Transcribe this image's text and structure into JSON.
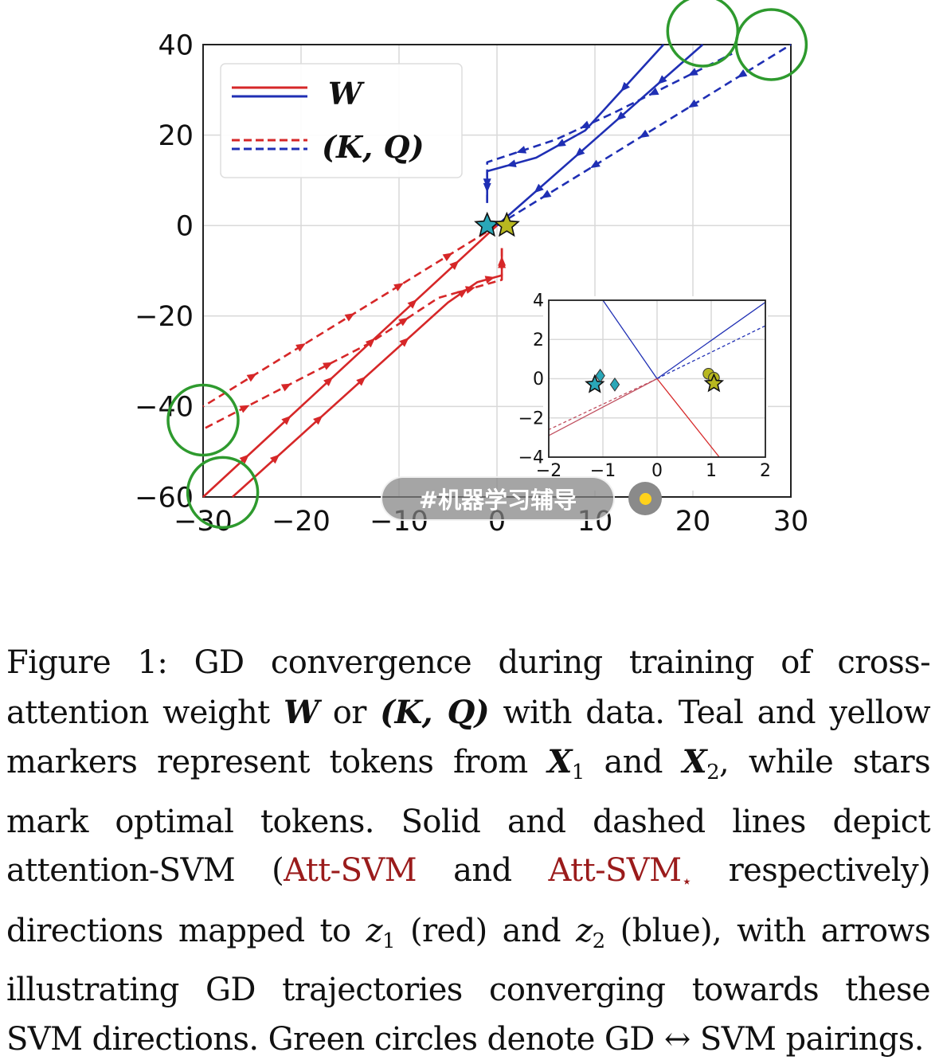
{
  "chart_data": [
    {
      "type": "line",
      "x_ticks": [
        "−30",
        "−20",
        "−10",
        "0",
        "10",
        "20",
        "30"
      ],
      "y_ticks": [
        "40",
        "20",
        "0",
        "−20",
        "−40",
        "−60"
      ],
      "xlim": [
        -30,
        30
      ],
      "ylim": [
        -60,
        40
      ],
      "grid": true,
      "legend_position": "top-left",
      "legend": [
        {
          "label": "W",
          "style": "solid",
          "colors": [
            "#d62728",
            "#1f2fb4"
          ]
        },
        {
          "label": "(K, Q)",
          "style": "dashed",
          "colors": [
            "#d62728",
            "#1f2fb4"
          ]
        }
      ],
      "series": [
        {
          "color": "#d62728",
          "style": "solid",
          "points": [
            [
              0,
              0
            ],
            [
              -30,
              -60
            ]
          ]
        },
        {
          "color": "#d62728",
          "style": "solid",
          "points": [
            [
              0.5,
              -5
            ],
            [
              0.5,
              -11
            ],
            [
              -2,
              -12.5
            ],
            [
              -5,
              -17
            ],
            [
              -27,
              -60
            ]
          ]
        },
        {
          "color": "#d62728",
          "style": "dashed",
          "points": [
            [
              0,
              0
            ],
            [
              -30,
              -40
            ]
          ]
        },
        {
          "color": "#d62728",
          "style": "dashed",
          "points": [
            [
              0.5,
              -5
            ],
            [
              0.5,
              -12
            ],
            [
              -6,
              -16
            ],
            [
              -13,
              -26
            ],
            [
              -30,
              -45
            ]
          ]
        },
        {
          "color": "#1f2fb4",
          "style": "solid",
          "points": [
            [
              0,
              0
            ],
            [
              21,
              40
            ]
          ]
        },
        {
          "color": "#1f2fb4",
          "style": "solid",
          "points": [
            [
              -1,
              5
            ],
            [
              -1,
              12
            ],
            [
              4,
              15
            ],
            [
              9,
              21
            ],
            [
              17,
              40
            ]
          ]
        },
        {
          "color": "#1f2fb4",
          "style": "dashed",
          "points": [
            [
              0,
              0
            ],
            [
              30,
              40
            ]
          ]
        },
        {
          "color": "#1f2fb4",
          "style": "dashed",
          "points": [
            [
              -1,
              5
            ],
            [
              -1,
              14
            ],
            [
              6,
              19
            ],
            [
              12,
              25
            ],
            [
              24,
              38
            ]
          ]
        }
      ],
      "markers": [
        {
          "kind": "star",
          "color": "#2aa7b8",
          "x": -1,
          "y": 0
        },
        {
          "kind": "star",
          "color": "#b8b820",
          "x": 1,
          "y": 0
        }
      ],
      "highlight_circles": [
        [
          21,
          43
        ],
        [
          28,
          40
        ],
        [
          -30,
          -43
        ],
        [
          -28,
          -59
        ]
      ]
    },
    {
      "type": "line",
      "x_ticks": [
        "−2",
        "−1",
        "0",
        "1",
        "2"
      ],
      "y_ticks": [
        "4",
        "2",
        "0",
        "−2",
        "−4"
      ],
      "xlim": [
        -2,
        2
      ],
      "ylim": [
        -4,
        4
      ],
      "series": [
        {
          "color": "#1f2fb4",
          "style": "solid",
          "points": [
            [
              0,
              0
            ],
            [
              2,
              3.9
            ]
          ]
        },
        {
          "color": "#1f2fb4",
          "style": "dashed",
          "points": [
            [
              0,
              0
            ],
            [
              2,
              2.7
            ]
          ]
        },
        {
          "color": "#c05060",
          "style": "solid",
          "points": [
            [
              0,
              0
            ],
            [
              -2,
              -2.9
            ]
          ]
        },
        {
          "color": "#c05060",
          "style": "dashed",
          "points": [
            [
              0,
              0
            ],
            [
              -2,
              -2.6
            ]
          ]
        },
        {
          "color": "#1f2fb4",
          "style": "solid",
          "points": [
            [
              0,
              0
            ],
            [
              -1,
              4
            ]
          ]
        },
        {
          "color": "#d62728",
          "style": "solid",
          "points": [
            [
              0,
              0
            ],
            [
              1.15,
              -4
            ]
          ]
        }
      ],
      "markers": [
        {
          "kind": "star",
          "color": "#2aa7b8",
          "x": -1.15,
          "y": -0.3
        },
        {
          "kind": "diamond",
          "color": "#2aa7b8",
          "x": -1.05,
          "y": 0.15
        },
        {
          "kind": "diamond",
          "color": "#2aa7b8",
          "x": -0.78,
          "y": -0.3
        },
        {
          "kind": "circle",
          "color": "#b8b820",
          "x": 0.95,
          "y": 0.25
        },
        {
          "kind": "circle",
          "color": "#b8b820",
          "x": 1.05,
          "y": 0.05
        },
        {
          "kind": "star",
          "color": "#b8b820",
          "x": 1.05,
          "y": -0.25
        }
      ]
    }
  ],
  "watermark": {
    "text": "#机器学习辅导"
  },
  "caption": {
    "figure_label": "Figure 1:",
    "t1": "GD convergence during training of cross-attention weight",
    "W": "W",
    "t2": "or",
    "KQ": "(K, Q)",
    "t3": "with data. Teal and yellow markers represent tokens from",
    "X": "X",
    "sub1": "1",
    "t4": "and",
    "sub2": "2",
    "t5": ", while stars mark optimal tokens. Solid and dashed lines depict attention-SVM (",
    "att1": "Att-SVM",
    "t6": "and",
    "att2": "Att-SVM",
    "att2_sub": "⋆",
    "t7": "respectively) directions mapped to",
    "z": "z",
    "t8": "(red) and",
    "t9": "(blue), with arrows illustrating GD trajectories converging towards these SVM directions. Green circles denote GD ↔ SVM pairings."
  }
}
